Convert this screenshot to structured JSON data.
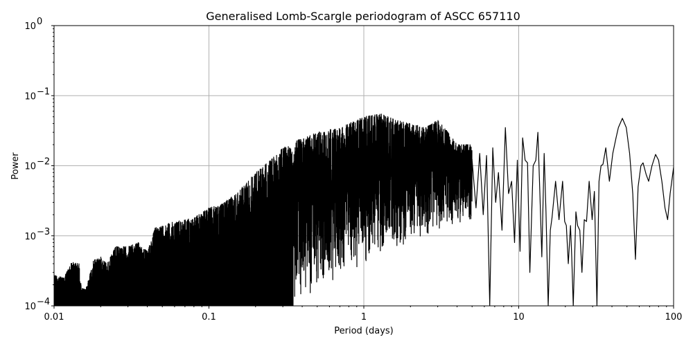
{
  "chart_data": {
    "type": "line",
    "title": "Generalised Lomb-Scargle periodogram of ASCC 657110",
    "xlabel": "Period (days)",
    "ylabel": "Power",
    "xscale": "log",
    "yscale": "log",
    "xlim": [
      0.01,
      100
    ],
    "ylim": [
      0.0001,
      1
    ],
    "grid": true,
    "line_color": "#000000",
    "grid_color": "#b0b0b0",
    "x_ticks": [
      {
        "value": 0.01,
        "label": "0.01"
      },
      {
        "value": 0.1,
        "label": "0.1"
      },
      {
        "value": 1,
        "label": "1"
      },
      {
        "value": 10,
        "label": "10"
      },
      {
        "value": 100,
        "label": "100"
      }
    ],
    "y_ticks": [
      {
        "value": 0.0001,
        "base": "10",
        "exp": "−4"
      },
      {
        "value": 0.001,
        "base": "10",
        "exp": "−3"
      },
      {
        "value": 0.01,
        "base": "10",
        "exp": "−2"
      },
      {
        "value": 0.1,
        "base": "10",
        "exp": "−1"
      },
      {
        "value": 1,
        "base": "10",
        "exp": "0"
      }
    ],
    "dense_region": {
      "description": "Densely oscillating periodogram for periods 0.01–~5 d; upper envelope of peaks and lower envelope of troughs",
      "upper_envelope": [
        [
          0.01,
          0.00028
        ],
        [
          0.0115,
          0.00025
        ],
        [
          0.013,
          0.00042
        ],
        [
          0.0145,
          0.0004
        ],
        [
          0.015,
          0.00018
        ],
        [
          0.016,
          0.00017
        ],
        [
          0.018,
          0.00045
        ],
        [
          0.02,
          0.0005
        ],
        [
          0.022,
          0.0004
        ],
        [
          0.025,
          0.0007
        ],
        [
          0.03,
          0.0007
        ],
        [
          0.035,
          0.0008
        ],
        [
          0.04,
          0.0006
        ],
        [
          0.045,
          0.0013
        ],
        [
          0.06,
          0.0016
        ],
        [
          0.08,
          0.0018
        ],
        [
          0.1,
          0.0025
        ],
        [
          0.12,
          0.0028
        ],
        [
          0.15,
          0.004
        ],
        [
          0.2,
          0.008
        ],
        [
          0.25,
          0.012
        ],
        [
          0.3,
          0.018
        ],
        [
          0.4,
          0.025
        ],
        [
          0.5,
          0.03
        ],
        [
          0.7,
          0.035
        ],
        [
          1.0,
          0.05
        ],
        [
          1.3,
          0.055
        ],
        [
          1.6,
          0.045
        ],
        [
          2.0,
          0.04
        ],
        [
          2.5,
          0.035
        ],
        [
          3.0,
          0.045
        ],
        [
          3.5,
          0.03
        ],
        [
          4.0,
          0.02
        ],
        [
          5.0,
          0.02
        ]
      ],
      "lower_envelope": [
        [
          0.01,
          0.0001
        ],
        [
          0.3,
          0.0001
        ],
        [
          0.4,
          0.00012
        ],
        [
          0.6,
          0.0002
        ],
        [
          0.8,
          0.0003
        ],
        [
          1.0,
          0.0004
        ],
        [
          1.5,
          0.0006
        ],
        [
          2.0,
          0.0008
        ],
        [
          3.0,
          0.0012
        ],
        [
          4.0,
          0.0015
        ],
        [
          5.0,
          0.0015
        ]
      ]
    },
    "sparse_region": {
      "description": "Resolved oscillations for periods ~5–100 d",
      "points": [
        [
          5.0,
          0.012
        ],
        [
          5.3,
          0.0025
        ],
        [
          5.6,
          0.015
        ],
        [
          5.9,
          0.002
        ],
        [
          6.2,
          0.014
        ],
        [
          6.5,
          0.0001
        ],
        [
          6.8,
          0.018
        ],
        [
          7.1,
          0.003
        ],
        [
          7.4,
          0.008
        ],
        [
          7.8,
          0.0012
        ],
        [
          8.2,
          0.035
        ],
        [
          8.6,
          0.004
        ],
        [
          9.0,
          0.006
        ],
        [
          9.4,
          0.0008
        ],
        [
          9.8,
          0.012
        ],
        [
          10.2,
          0.0006
        ],
        [
          10.6,
          0.025
        ],
        [
          11.0,
          0.012
        ],
        [
          11.4,
          0.011
        ],
        [
          11.8,
          0.0003
        ],
        [
          12.4,
          0.01
        ],
        [
          12.9,
          0.012
        ],
        [
          13.3,
          0.03
        ],
        [
          13.7,
          0.004
        ],
        [
          14.1,
          0.0005
        ],
        [
          14.6,
          0.015
        ],
        [
          15.0,
          0.0022
        ],
        [
          15.5,
          0.0001
        ],
        [
          16.0,
          0.0012
        ],
        [
          16.4,
          0.0018
        ],
        [
          17.3,
          0.006
        ],
        [
          18.2,
          0.0017
        ],
        [
          19.2,
          0.006
        ],
        [
          19.8,
          0.0016
        ],
        [
          20.3,
          0.0014
        ],
        [
          20.9,
          0.0004
        ],
        [
          21.6,
          0.0014
        ],
        [
          22.0,
          0.0005
        ],
        [
          22.5,
          0.0001
        ],
        [
          23.4,
          0.0022
        ],
        [
          24.0,
          0.0014
        ],
        [
          24.8,
          0.0012
        ],
        [
          25.6,
          0.0003
        ],
        [
          26.5,
          0.0017
        ],
        [
          27.4,
          0.0016
        ],
        [
          28.5,
          0.006
        ],
        [
          29.8,
          0.0017
        ],
        [
          30.8,
          0.0043
        ],
        [
          32.0,
          0.0001
        ],
        [
          33.0,
          0.006
        ],
        [
          34.0,
          0.01
        ],
        [
          35.0,
          0.0105
        ],
        [
          36.5,
          0.018
        ],
        [
          38.5,
          0.006
        ],
        [
          40.5,
          0.015
        ],
        [
          42.5,
          0.025
        ],
        [
          44.0,
          0.035
        ],
        [
          46.7,
          0.0475
        ],
        [
          49.5,
          0.035
        ],
        [
          52.0,
          0.015
        ],
        [
          54.5,
          0.004
        ],
        [
          56.7,
          0.00046
        ],
        [
          59.0,
          0.005
        ],
        [
          61.5,
          0.01
        ],
        [
          63.5,
          0.011
        ],
        [
          66.5,
          0.0075
        ],
        [
          69.0,
          0.006
        ],
        [
          72.5,
          0.01
        ],
        [
          76.5,
          0.0145
        ],
        [
          80.0,
          0.012
        ],
        [
          84.0,
          0.006
        ],
        [
          88.0,
          0.0025
        ],
        [
          91.5,
          0.0017
        ],
        [
          95.0,
          0.004
        ],
        [
          100.0,
          0.0095
        ]
      ]
    },
    "notable_peaks": [
      {
        "period": 1.3,
        "power": 0.055
      },
      {
        "period": 8.2,
        "power": 0.035
      },
      {
        "period": 46.7,
        "power": 0.0475
      }
    ]
  }
}
